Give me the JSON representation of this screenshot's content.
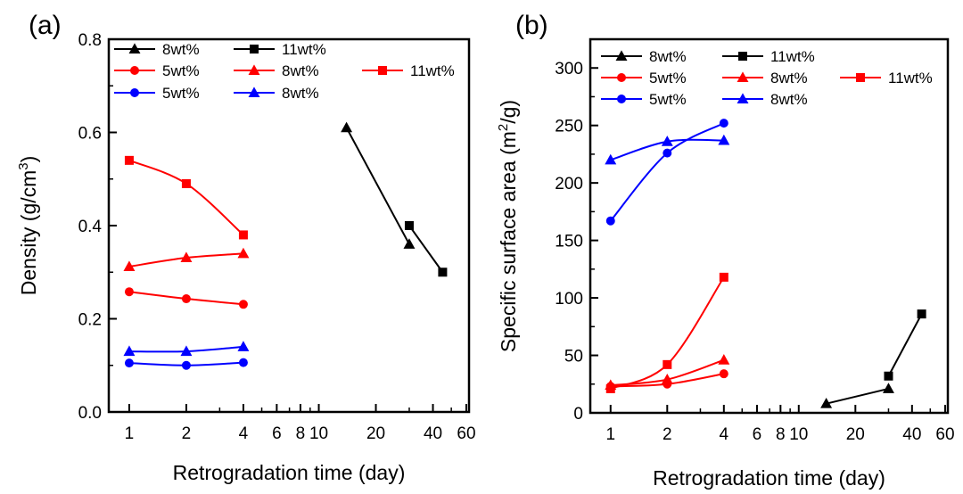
{
  "chart_data": [
    {
      "type": "line",
      "panel_label": "(a)",
      "xlabel": "Retrogradation time (day)",
      "ylabel": "Density (g/cm³)",
      "ylabel_main": "Density (g/cm",
      "ylabel_sup": "3",
      "ylabel_tail": ")",
      "x_scale": "log",
      "xlim": [
        0.78,
        62
      ],
      "ylim": [
        0.0,
        0.8
      ],
      "x_ticks": [
        1,
        2,
        4,
        6,
        8,
        10,
        20,
        40,
        60
      ],
      "x_tick_labels": [
        "1",
        "2",
        "4",
        "6",
        "8",
        "10",
        "20",
        "40",
        "60"
      ],
      "y_ticks": [
        0.0,
        0.2,
        0.4,
        0.6,
        0.8
      ],
      "y_tick_labels": [
        "0.0",
        "0.2",
        "0.4",
        "0.6",
        "0.8"
      ],
      "legend_placement": "top",
      "series": [
        {
          "name": "8wt%",
          "color": "#000000",
          "marker": "triangle",
          "x": [
            14,
            30
          ],
          "y": [
            0.61,
            0.36
          ]
        },
        {
          "name": "11wt%",
          "color": "#000000",
          "marker": "square",
          "x": [
            30,
            45
          ],
          "y": [
            0.4,
            0.3
          ]
        },
        {
          "name": "5wt%",
          "color": "#ff0000",
          "marker": "circle",
          "x": [
            1,
            2,
            4
          ],
          "y": [
            0.258,
            0.243,
            0.231
          ]
        },
        {
          "name": "8wt%",
          "color": "#ff0000",
          "marker": "triangle",
          "x": [
            1,
            2,
            4
          ],
          "y": [
            0.312,
            0.331,
            0.34
          ]
        },
        {
          "name": "11wt%",
          "color": "#ff0000",
          "marker": "square",
          "x": [
            1,
            2,
            4
          ],
          "y": [
            0.54,
            0.49,
            0.38
          ]
        },
        {
          "name": "5wt%",
          "color": "#0000ff",
          "marker": "circle",
          "x": [
            1,
            2,
            4
          ],
          "y": [
            0.105,
            0.1,
            0.106
          ]
        },
        {
          "name": "8wt%",
          "color": "#0000ff",
          "marker": "triangle",
          "x": [
            1,
            2,
            4
          ],
          "y": [
            0.13,
            0.13,
            0.14
          ]
        }
      ]
    },
    {
      "type": "line",
      "panel_label": "(b)",
      "xlabel": "Retrogradation time (day)",
      "ylabel": "Specific surface area (m²/g)",
      "ylabel_main": "Specific surface area (m",
      "ylabel_sup": "2",
      "ylabel_tail": "/g)",
      "x_scale": "log",
      "xlim": [
        0.78,
        62
      ],
      "ylim": [
        0,
        325
      ],
      "x_ticks": [
        1,
        2,
        4,
        6,
        8,
        10,
        20,
        40,
        60
      ],
      "x_tick_labels": [
        "1",
        "2",
        "4",
        "6",
        "8",
        "10",
        "20",
        "40",
        "60"
      ],
      "y_ticks": [
        0,
        50,
        100,
        150,
        200,
        250,
        300
      ],
      "y_tick_labels": [
        "0",
        "50",
        "100",
        "150",
        "200",
        "250",
        "300"
      ],
      "legend_placement": "top",
      "series": [
        {
          "name": "8wt%",
          "color": "#000000",
          "marker": "triangle",
          "x": [
            14,
            30
          ],
          "y": [
            8,
            21
          ]
        },
        {
          "name": "11wt%",
          "color": "#000000",
          "marker": "square",
          "x": [
            30,
            45
          ],
          "y": [
            32,
            86
          ]
        },
        {
          "name": "5wt%",
          "color": "#ff0000",
          "marker": "circle",
          "x": [
            1,
            2,
            4
          ],
          "y": [
            23,
            25,
            34
          ]
        },
        {
          "name": "8wt%",
          "color": "#ff0000",
          "marker": "triangle",
          "x": [
            1,
            2,
            4
          ],
          "y": [
            24,
            29,
            46
          ]
        },
        {
          "name": "11wt%",
          "color": "#ff0000",
          "marker": "square",
          "x": [
            1,
            2,
            4
          ],
          "y": [
            21,
            42,
            118
          ]
        },
        {
          "name": "5wt%",
          "color": "#0000ff",
          "marker": "circle",
          "x": [
            1,
            2,
            4
          ],
          "y": [
            167,
            226,
            252
          ]
        },
        {
          "name": "8wt%",
          "color": "#0000ff",
          "marker": "triangle",
          "x": [
            1,
            2,
            4
          ],
          "y": [
            220,
            236,
            237
          ]
        }
      ]
    }
  ]
}
